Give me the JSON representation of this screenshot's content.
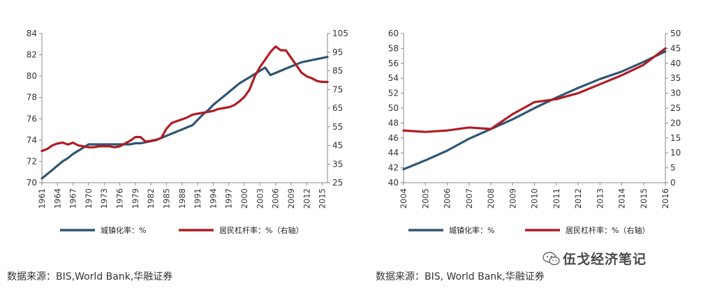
{
  "chart_data": [
    {
      "type": "line",
      "title": "",
      "x": [
        "1961",
        "1962",
        "1963",
        "1964",
        "1965",
        "1966",
        "1967",
        "1968",
        "1969",
        "1970",
        "1971",
        "1972",
        "1973",
        "1974",
        "1975",
        "1976",
        "1977",
        "1978",
        "1979",
        "1980",
        "1981",
        "1982",
        "1983",
        "1984",
        "1985",
        "1986",
        "1987",
        "1988",
        "1989",
        "1990",
        "1991",
        "1992",
        "1993",
        "1994",
        "1995",
        "1996",
        "1997",
        "1998",
        "1999",
        "2000",
        "2001",
        "2002",
        "2003",
        "2004",
        "2005",
        "2006",
        "2007",
        "2008",
        "2009",
        "2010",
        "2011",
        "2012",
        "2013",
        "2014",
        "2015",
        "2016"
      ],
      "xticks": [
        "1961",
        "1964",
        "1967",
        "1970",
        "1973",
        "1976",
        "1979",
        "1982",
        "1985",
        "1988",
        "1991",
        "1994",
        "1997",
        "2000",
        "2003",
        "2006",
        "2009",
        "2012",
        "2015"
      ],
      "ylim_left": [
        70,
        84
      ],
      "yticks_left": [
        "70",
        "72",
        "74",
        "76",
        "78",
        "80",
        "82",
        "84"
      ],
      "ylim_right": [
        25,
        105
      ],
      "yticks_right": [
        "25",
        "35",
        "45",
        "55",
        "65",
        "75",
        "85",
        "95",
        "105"
      ],
      "series": [
        {
          "name": "城镇化率：%",
          "axis": "left",
          "color": "#2f5673",
          "values": [
            70.4,
            70.8,
            71.2,
            71.6,
            72.0,
            72.3,
            72.7,
            73.0,
            73.3,
            73.6,
            73.6,
            73.6,
            73.6,
            73.6,
            73.6,
            73.6,
            73.6,
            73.6,
            73.7,
            73.7,
            73.8,
            73.9,
            74.0,
            74.2,
            74.4,
            74.6,
            74.8,
            75.0,
            75.2,
            75.4,
            75.9,
            76.4,
            76.8,
            77.3,
            77.7,
            78.1,
            78.5,
            78.9,
            79.3,
            79.6,
            79.9,
            80.2,
            80.5,
            80.8,
            80.1,
            80.3,
            80.5,
            80.7,
            80.9,
            81.1,
            81.3,
            81.4,
            81.5,
            81.6,
            81.7,
            81.8
          ]
        },
        {
          "name": "居民杠杆率：%（右轴）",
          "axis": "right",
          "color": "#b01c24",
          "values": [
            42.0,
            43.0,
            45.0,
            46.0,
            46.5,
            45.5,
            46.5,
            45.0,
            44.5,
            44.0,
            44.0,
            44.5,
            44.5,
            44.5,
            44.0,
            44.5,
            46.0,
            47.5,
            49.5,
            49.5,
            47.0,
            47.5,
            48.0,
            49.0,
            54.0,
            57.0,
            58.0,
            59.0,
            60.0,
            61.5,
            62.0,
            62.5,
            63.0,
            63.5,
            64.5,
            65.0,
            65.5,
            66.5,
            68.5,
            71.0,
            75.0,
            82.0,
            87.0,
            91.0,
            95.0,
            98.0,
            96.0,
            96.0,
            92.0,
            88.0,
            84.0,
            82.0,
            81.0,
            79.5,
            79.0,
            79.0
          ]
        }
      ],
      "legend_position": "bottom"
    },
    {
      "type": "line",
      "title": "",
      "x": [
        "2004",
        "2005",
        "2006",
        "2007",
        "2008",
        "2009",
        "2010",
        "2011",
        "2012",
        "2013",
        "2014",
        "2015",
        "2016"
      ],
      "ylim_left": [
        40,
        60
      ],
      "yticks_left": [
        "40",
        "42",
        "44",
        "46",
        "48",
        "50",
        "52",
        "54",
        "56",
        "58",
        "60"
      ],
      "ylim_right": [
        0,
        50
      ],
      "yticks_right": [
        "0",
        "5",
        "10",
        "15",
        "20",
        "25",
        "30",
        "35",
        "40",
        "45",
        "50"
      ],
      "series": [
        {
          "name": "城镇化率：%",
          "axis": "left",
          "color": "#2f5673",
          "values": [
            41.8,
            43.0,
            44.3,
            45.9,
            47.2,
            48.5,
            50.0,
            51.4,
            52.7,
            53.9,
            54.9,
            56.2,
            57.6
          ]
        },
        {
          "name": "居民杠杆率：%（右轴）",
          "axis": "right",
          "color": "#b01c24",
          "values": [
            17.5,
            17.0,
            17.5,
            18.5,
            18.0,
            23.0,
            27.0,
            28.0,
            30.0,
            33.0,
            36.0,
            39.5,
            45.0
          ]
        }
      ],
      "legend_position": "bottom"
    }
  ],
  "source_left": "数据来源：BIS,World Bank,华融证券",
  "source_right": "数据来源：BIS, World Bank,华融证券",
  "watermark": "伍戈经济笔记",
  "watermark_icon": "wechat-icon"
}
